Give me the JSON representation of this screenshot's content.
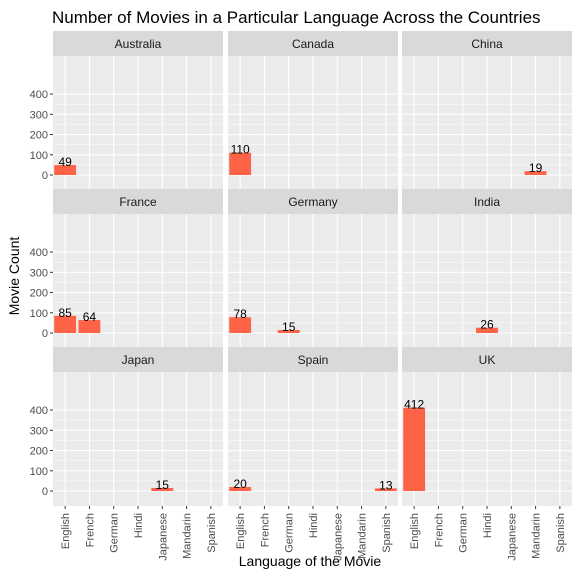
{
  "chart_data": {
    "type": "bar",
    "title": "Number of Movies in a Particular Language Across the Countries",
    "xlabel": "Language of the Movie",
    "ylabel": "Movie Count",
    "categories": [
      "English",
      "French",
      "German",
      "Hindi",
      "Japanese",
      "Mandarin",
      "Spanish"
    ],
    "y_ticks": [
      0,
      100,
      200,
      300,
      400
    ],
    "ylim": [
      0,
      430
    ],
    "grid": true,
    "colors": {
      "bar": "#FF6347",
      "panel_bg": "#EBEBEB",
      "strip_bg": "#D9D9D9",
      "grid_major": "#FFFFFF"
    },
    "panels": [
      {
        "name": "Australia",
        "values": {
          "English": 49
        }
      },
      {
        "name": "Canada",
        "values": {
          "English": 110
        }
      },
      {
        "name": "China",
        "values": {
          "Mandarin": 19
        }
      },
      {
        "name": "France",
        "values": {
          "English": 85,
          "French": 64
        }
      },
      {
        "name": "Germany",
        "values": {
          "English": 78,
          "German": 15
        }
      },
      {
        "name": "India",
        "values": {
          "Hindi": 26
        }
      },
      {
        "name": "Japan",
        "values": {
          "Japanese": 15
        }
      },
      {
        "name": "Spain",
        "values": {
          "English": 20,
          "Spanish": 13
        }
      },
      {
        "name": "UK",
        "values": {
          "English": 412
        }
      }
    ]
  }
}
